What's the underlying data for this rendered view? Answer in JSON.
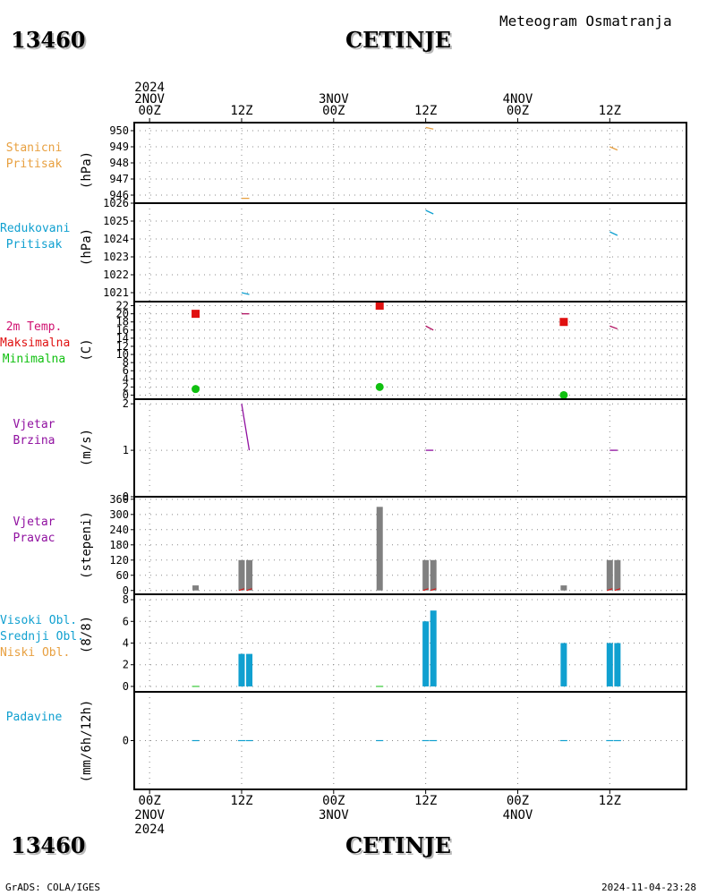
{
  "header": {
    "station_id": "13460",
    "station_name": "CETINJE",
    "product": "Meteogram Osmatranja"
  },
  "footer": {
    "credit": "GrADS: COLA/IGES",
    "timestamp": "2024-11-04-23:28"
  },
  "colors": {
    "pressure": "#e8a040",
    "msl": "#10a0d0",
    "tmax": "#e01010",
    "tmin": "#10c010",
    "wind": "#9010a0",
    "bars": "#808080",
    "cloud_high": "#10a0d0",
    "cloud_mid": "#10a0d0",
    "cloud_low": "#e8a040",
    "precip": "#10a0d0"
  },
  "time_axis": {
    "top": [
      {
        "x": 0,
        "lines": [
          "2024",
          "2NOV",
          "00Z"
        ]
      },
      {
        "x": 12,
        "lines": [
          "12Z"
        ]
      },
      {
        "x": 24,
        "lines": [
          "3NOV",
          "00Z"
        ]
      },
      {
        "x": 36,
        "lines": [
          "12Z"
        ]
      },
      {
        "x": 48,
        "lines": [
          "4NOV",
          "00Z"
        ]
      },
      {
        "x": 60,
        "lines": [
          "12Z"
        ]
      }
    ],
    "bottom": [
      {
        "x": 0,
        "lines": [
          "00Z",
          "2NOV",
          "2024"
        ]
      },
      {
        "x": 12,
        "lines": [
          "12Z"
        ]
      },
      {
        "x": 24,
        "lines": [
          "00Z",
          "3NOV"
        ]
      },
      {
        "x": 36,
        "lines": [
          "12Z"
        ]
      },
      {
        "x": 48,
        "lines": [
          "00Z",
          "4NOV"
        ]
      },
      {
        "x": 60,
        "lines": [
          "12Z"
        ]
      }
    ]
  },
  "panels": [
    {
      "key": "stanicni",
      "labels": [
        {
          "text": "Stanicni",
          "color": "#e8a040"
        },
        {
          "text": "Pritisak",
          "color": "#e8a040"
        }
      ],
      "unit": "(hPa)"
    },
    {
      "key": "redukovani",
      "labels": [
        {
          "text": "Redukovani",
          "color": "#10a0d0"
        },
        {
          "text": "Pritisak",
          "color": "#10a0d0"
        }
      ],
      "unit": "(hPa)"
    },
    {
      "key": "temp",
      "labels": [
        {
          "text": "2m Temp.",
          "color": "#d01070"
        },
        {
          "text": "Maksimalna",
          "color": "#e01010"
        },
        {
          "text": "Minimalna",
          "color": "#10c010"
        }
      ],
      "unit": "(C)"
    },
    {
      "key": "brzina",
      "labels": [
        {
          "text": "Vjetar",
          "color": "#9010a0"
        },
        {
          "text": "Brzina",
          "color": "#9010a0"
        }
      ],
      "unit": "(m/s)"
    },
    {
      "key": "pravac",
      "labels": [
        {
          "text": "Vjetar",
          "color": "#9010a0"
        },
        {
          "text": "Pravac",
          "color": "#9010a0"
        }
      ],
      "unit": "(stepeni)"
    },
    {
      "key": "oblaci",
      "labels": [
        {
          "text": "Visoki Obl.",
          "color": "#10a0d0"
        },
        {
          "text": "Srednji Obl.",
          "color": "#10a0d0"
        },
        {
          "text": "Niski Obl.",
          "color": "#e8a040"
        }
      ],
      "unit": "(8/8)"
    },
    {
      "key": "padavine",
      "labels": [
        {
          "text": "Padavine",
          "color": "#10a0d0"
        }
      ],
      "unit": "(mm/6h/12h)"
    }
  ],
  "chart_data": [
    {
      "type": "line",
      "key": "stanicni",
      "ylim": [
        945.5,
        950.5
      ],
      "yticks": [
        946,
        947,
        948,
        949,
        950
      ],
      "series": [
        {
          "x": [
            12,
            13
          ],
          "values": [
            945.8,
            945.8
          ]
        },
        {
          "x": [
            36,
            37
          ],
          "values": [
            950.2,
            950.1
          ]
        },
        {
          "x": [
            60,
            61
          ],
          "values": [
            949.0,
            948.8
          ]
        }
      ]
    },
    {
      "type": "line",
      "key": "redukovani",
      "ylim": [
        1020.5,
        1026.0
      ],
      "yticks": [
        1021,
        1022,
        1023,
        1024,
        1025,
        1026
      ],
      "series": [
        {
          "x": [
            12,
            13
          ],
          "values": [
            1021.0,
            1020.9
          ]
        },
        {
          "x": [
            36,
            37
          ],
          "values": [
            1025.6,
            1025.4
          ]
        },
        {
          "x": [
            60,
            61
          ],
          "values": [
            1024.4,
            1024.2
          ]
        }
      ]
    },
    {
      "type": "scatter",
      "key": "temp",
      "ylim": [
        -1,
        23
      ],
      "yticks": [
        0,
        2,
        4,
        6,
        8,
        10,
        12,
        14,
        16,
        18,
        20,
        22
      ],
      "tmax": {
        "x": [
          6,
          30,
          54
        ],
        "values": [
          20,
          22,
          18
        ]
      },
      "tmin": {
        "x": [
          6,
          30,
          54
        ],
        "values": [
          1.5,
          2,
          0
        ]
      },
      "temp_segments": [
        {
          "x": [
            12,
            13
          ],
          "values": [
            20,
            20
          ]
        },
        {
          "x": [
            36,
            37
          ],
          "values": [
            17,
            16
          ]
        },
        {
          "x": [
            60,
            61
          ],
          "values": [
            17,
            16.3
          ]
        }
      ]
    },
    {
      "type": "line",
      "key": "brzina",
      "ylim": [
        0,
        2.1
      ],
      "yticks": [
        0,
        1,
        2
      ],
      "series": [
        {
          "x": [
            12,
            13
          ],
          "values": [
            2.0,
            1.0
          ]
        },
        {
          "x": [
            36,
            37
          ],
          "values": [
            1.0,
            1.0
          ]
        },
        {
          "x": [
            60,
            61
          ],
          "values": [
            1.0,
            1.0
          ]
        }
      ]
    },
    {
      "type": "bar",
      "key": "pravac",
      "ylim": [
        -15,
        370
      ],
      "yticks": [
        0,
        60,
        120,
        180,
        240,
        300,
        360
      ],
      "bars": [
        {
          "x": 6,
          "value": 20
        },
        {
          "x": 12,
          "value": 120
        },
        {
          "x": 13,
          "value": 120
        },
        {
          "x": 30,
          "value": 330
        },
        {
          "x": 36,
          "value": 120
        },
        {
          "x": 37,
          "value": 120
        },
        {
          "x": 54,
          "value": 20
        },
        {
          "x": 60,
          "value": 120
        },
        {
          "x": 61,
          "value": 120
        }
      ]
    },
    {
      "type": "bar",
      "key": "oblaci",
      "ylim": [
        -0.5,
        8.5
      ],
      "yticks": [
        0,
        2,
        4,
        6,
        8
      ],
      "bars": [
        {
          "x": 12,
          "value": 3
        },
        {
          "x": 13,
          "value": 3
        },
        {
          "x": 36,
          "value": 6
        },
        {
          "x": 37,
          "value": 7
        },
        {
          "x": 54,
          "value": 4
        },
        {
          "x": 60,
          "value": 4
        },
        {
          "x": 61,
          "value": 4
        }
      ]
    },
    {
      "type": "bar",
      "key": "padavine",
      "ylim": [
        -1,
        1
      ],
      "yticks": [
        0
      ],
      "bars": [
        {
          "x": 6,
          "value": 0
        },
        {
          "x": 12,
          "value": 0
        },
        {
          "x": 13,
          "value": 0
        },
        {
          "x": 30,
          "value": 0
        },
        {
          "x": 36,
          "value": 0
        },
        {
          "x": 37,
          "value": 0
        },
        {
          "x": 54,
          "value": 0
        },
        {
          "x": 60,
          "value": 0
        },
        {
          "x": 61,
          "value": 0
        }
      ]
    }
  ]
}
